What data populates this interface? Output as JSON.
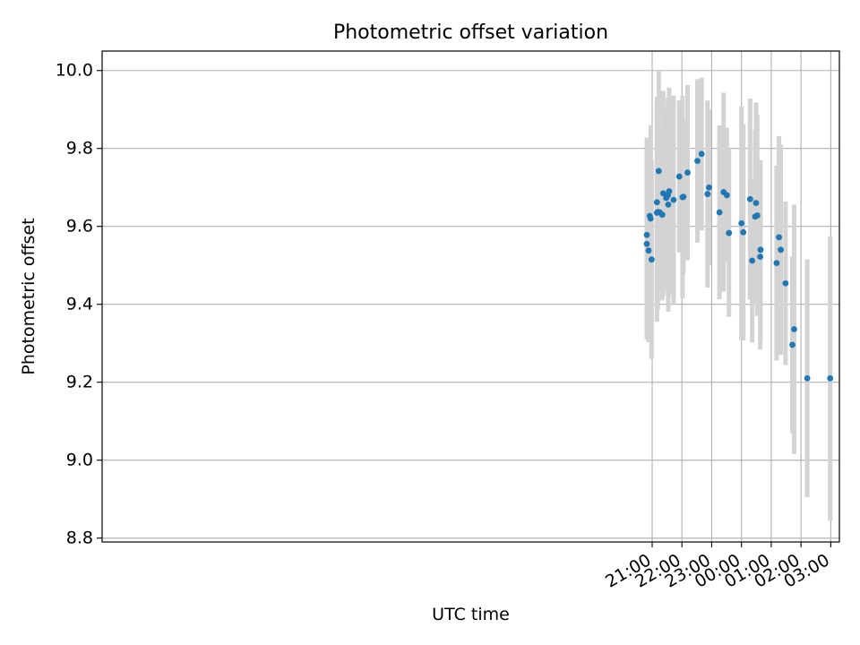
{
  "chart_data": {
    "type": "scatter",
    "title": "Photometric offset variation",
    "xlabel": "UTC time",
    "ylabel": "Photometric offset",
    "x_unit": "hours after 00:00 UTC (negative = previous evening)",
    "xlim": [
      -21.48,
      3.29
    ],
    "ylim": [
      8.79,
      10.05
    ],
    "xticks": [
      {
        "value": -3,
        "label": "21:00"
      },
      {
        "value": -2,
        "label": "22:00"
      },
      {
        "value": -1,
        "label": "23:00"
      },
      {
        "value": 0,
        "label": "00:00"
      },
      {
        "value": 1,
        "label": "01:00"
      },
      {
        "value": 2,
        "label": "02:00"
      },
      {
        "value": 3,
        "label": "03:00"
      }
    ],
    "yticks": [
      {
        "value": 8.8,
        "label": "8.8"
      },
      {
        "value": 9.0,
        "label": "9.0"
      },
      {
        "value": 9.2,
        "label": "9.2"
      },
      {
        "value": 9.4,
        "label": "9.4"
      },
      {
        "value": 9.6,
        "label": "9.6"
      },
      {
        "value": 9.8,
        "label": "9.8"
      },
      {
        "value": 10.0,
        "label": "10.0"
      }
    ],
    "grid": true,
    "colors": {
      "points": "#1f77b4",
      "errorbars": "#d3d3d3",
      "grid": "#b0b0b0"
    },
    "series": [
      {
        "points": [
          {
            "x": -3.18,
            "y": 9.555,
            "err": 0.245
          },
          {
            "x": -3.18,
            "y": 9.578,
            "err": 0.25
          },
          {
            "x": -3.12,
            "y": 9.538,
            "err": 0.235
          },
          {
            "x": -3.08,
            "y": 9.627,
            "err": 0.18
          },
          {
            "x": -3.05,
            "y": 9.62,
            "err": 0.24
          },
          {
            "x": -3.02,
            "y": 9.515,
            "err": 0.255
          },
          {
            "x": -2.84,
            "y": 9.662,
            "err": 0.27
          },
          {
            "x": -2.84,
            "y": 9.635,
            "err": 0.28
          },
          {
            "x": -2.81,
            "y": 9.637,
            "err": 0.25
          },
          {
            "x": -2.78,
            "y": 9.742,
            "err": 0.258
          },
          {
            "x": -2.75,
            "y": 9.636,
            "err": 0.205
          },
          {
            "x": -2.66,
            "y": 9.63,
            "err": 0.22
          },
          {
            "x": -2.63,
            "y": 9.685,
            "err": 0.263
          },
          {
            "x": -2.53,
            "y": 9.673,
            "err": 0.23
          },
          {
            "x": -2.47,
            "y": 9.68,
            "err": 0.25
          },
          {
            "x": -2.46,
            "y": 9.656,
            "err": 0.275
          },
          {
            "x": -2.43,
            "y": 9.69,
            "err": 0.266
          },
          {
            "x": -2.28,
            "y": 9.668,
            "err": 0.268
          },
          {
            "x": -2.09,
            "y": 9.728,
            "err": 0.195
          },
          {
            "x": -1.98,
            "y": 9.675,
            "err": 0.26
          },
          {
            "x": -1.95,
            "y": 9.676,
            "err": 0.197
          },
          {
            "x": -1.81,
            "y": 9.738,
            "err": 0.225
          },
          {
            "x": -1.48,
            "y": 9.768,
            "err": 0.21
          },
          {
            "x": -1.34,
            "y": 9.786,
            "err": 0.196
          },
          {
            "x": -1.14,
            "y": 9.683,
            "err": 0.24
          },
          {
            "x": -1.09,
            "y": 9.7,
            "err": 0.2
          },
          {
            "x": -0.74,
            "y": 9.636,
            "err": 0.223
          },
          {
            "x": -0.6,
            "y": 9.688,
            "err": 0.255
          },
          {
            "x": -0.49,
            "y": 9.68,
            "err": 0.173
          },
          {
            "x": -0.42,
            "y": 9.583,
            "err": 0.215
          },
          {
            "x": 0.0,
            "y": 9.608,
            "err": 0.3
          },
          {
            "x": 0.06,
            "y": 9.585,
            "err": 0.278
          },
          {
            "x": 0.29,
            "y": 9.67,
            "err": 0.258
          },
          {
            "x": 0.36,
            "y": 9.512,
            "err": 0.21
          },
          {
            "x": 0.46,
            "y": 9.625,
            "err": 0.223
          },
          {
            "x": 0.49,
            "y": 9.66,
            "err": 0.258
          },
          {
            "x": 0.53,
            "y": 9.628,
            "err": 0.258
          },
          {
            "x": 0.63,
            "y": 9.522,
            "err": 0.238
          },
          {
            "x": 0.64,
            "y": 9.54,
            "err": 0.23
          },
          {
            "x": 1.18,
            "y": 9.506,
            "err": 0.25
          },
          {
            "x": 1.26,
            "y": 9.572,
            "err": 0.26
          },
          {
            "x": 1.32,
            "y": 9.54,
            "err": 0.27
          },
          {
            "x": 1.48,
            "y": 9.454,
            "err": 0.21
          },
          {
            "x": 1.71,
            "y": 9.296,
            "err": 0.227
          },
          {
            "x": 1.77,
            "y": 9.336,
            "err": 0.32
          },
          {
            "x": 2.21,
            "y": 9.21,
            "err": 0.305
          },
          {
            "x": 2.98,
            "y": 9.21,
            "err": 0.365
          }
        ]
      }
    ]
  }
}
